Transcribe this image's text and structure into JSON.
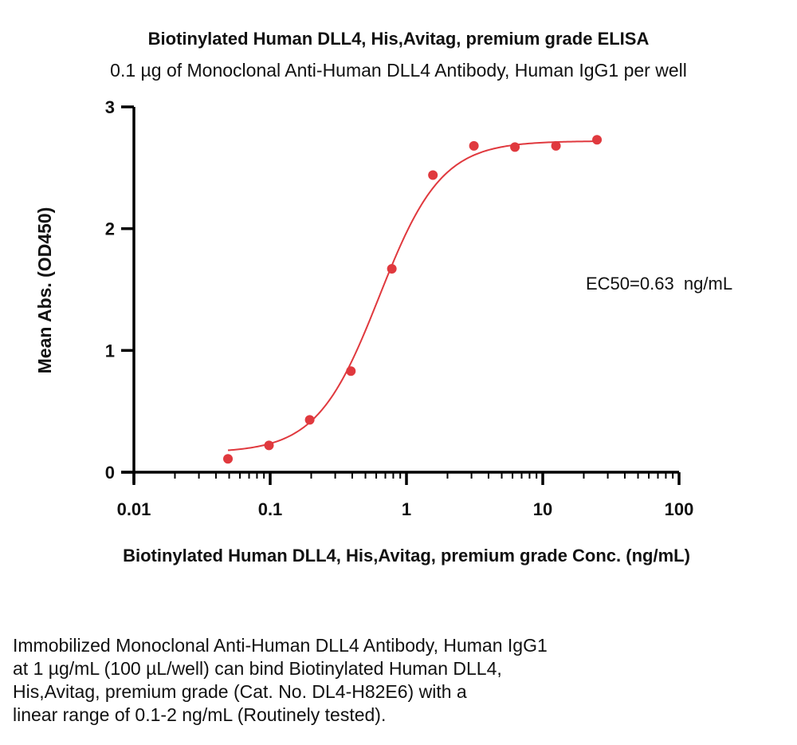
{
  "chart_data": {
    "type": "scatter",
    "title": "Biotinylated Human DLL4, His,Avitag, premium grade ELISA",
    "subtitle": "0.1 µg of Monoclonal Anti-Human DLL4 Antibody, Human IgG1 per well",
    "xlabel": "Biotinylated Human DLL4, His,Avitag, premium grade Conc. (ng/mL)",
    "ylabel": "Mean Abs. (OD450)",
    "x_scale": "log",
    "xlim": [
      0.01,
      100
    ],
    "ylim": [
      0,
      3
    ],
    "x_ticks": [
      "0.01",
      "0.1",
      "1",
      "10",
      "100"
    ],
    "y_ticks": [
      "0",
      "1",
      "2",
      "3"
    ],
    "grid": false,
    "annotation": "EC50=0.63  ng/mL",
    "color": "#e0393e",
    "series": [
      {
        "x": [
          0.049,
          0.098,
          0.195,
          0.391,
          0.781,
          1.563,
          3.125,
          6.25,
          12.5,
          25
        ],
        "y": [
          0.11,
          0.22,
          0.43,
          0.83,
          1.67,
          2.44,
          2.68,
          2.67,
          2.68,
          2.73
        ]
      }
    ],
    "fit": {
      "bottom": 0.16,
      "top": 2.72,
      "ec50": 0.63,
      "hill": 1.9
    }
  },
  "caption": [
    "Immobilized Monoclonal Anti-Human DLL4 Antibody, Human IgG1",
    "at 1 µg/mL (100 µL/well) can bind Biotinylated Human DLL4,",
    "His,Avitag, premium grade (Cat. No. DL4-H82E6) with a",
    "linear range of 0.1-2 ng/mL (Routinely tested)."
  ]
}
